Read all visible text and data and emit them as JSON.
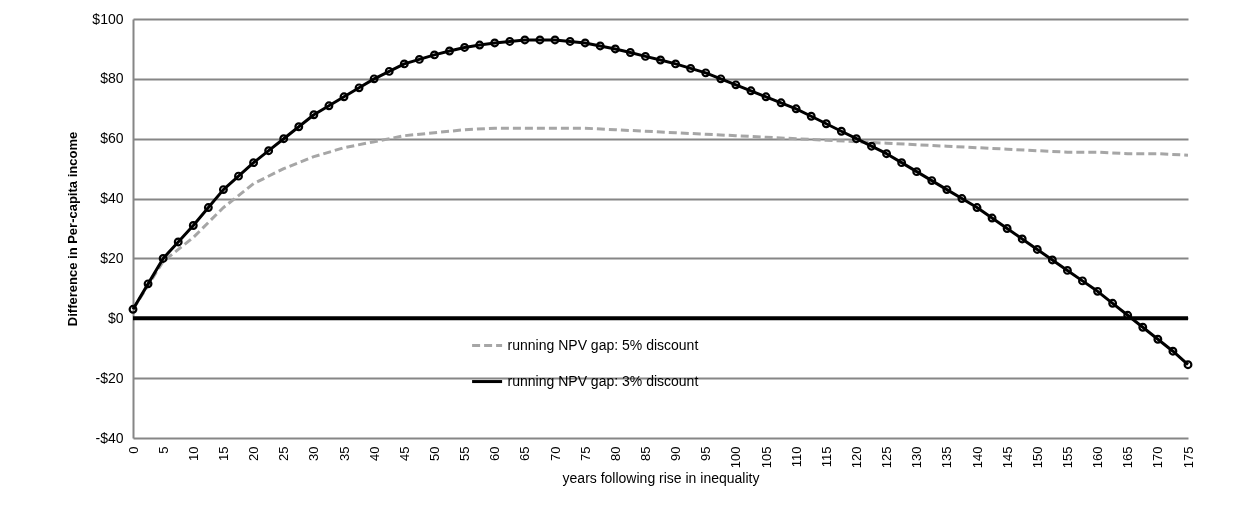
{
  "chart_data": {
    "type": "line",
    "xlabel": "years following rise in inequality",
    "ylabel": "Difference in Per-capita income",
    "xlim": [
      0,
      175
    ],
    "xticks": [
      0,
      5,
      10,
      15,
      20,
      25,
      30,
      35,
      40,
      45,
      50,
      55,
      60,
      65,
      70,
      75,
      80,
      85,
      90,
      95,
      100,
      105,
      110,
      115,
      120,
      125,
      130,
      135,
      140,
      145,
      150,
      155,
      160,
      165,
      170,
      175
    ],
    "ylim": [
      -40,
      100
    ],
    "yticks": [
      {
        "value": -40,
        "label": "-$40"
      },
      {
        "value": -20,
        "label": "-$20"
      },
      {
        "value": 0,
        "label": "$0"
      },
      {
        "value": 20,
        "label": "$20"
      },
      {
        "value": 40,
        "label": "$40"
      },
      {
        "value": 60,
        "label": "$60"
      },
      {
        "value": 80,
        "label": "$80"
      },
      {
        "value": 100,
        "label": "$100"
      }
    ],
    "grid": "y",
    "legend": "bottom",
    "ref_lines": [
      {
        "axis": "y",
        "value": 0,
        "color": "#000000"
      }
    ],
    "series": [
      {
        "name": "running NPV gap: 5% discount",
        "color": "#a6a6a6",
        "line_style": "dashed",
        "marker": "none",
        "x": [
          0,
          5,
          10,
          15,
          20,
          25,
          30,
          35,
          40,
          45,
          50,
          55,
          60,
          65,
          70,
          75,
          80,
          85,
          90,
          95,
          100,
          105,
          110,
          115,
          120,
          125,
          130,
          135,
          140,
          145,
          150,
          155,
          160,
          165,
          170,
          175
        ],
        "values": [
          3,
          19,
          27,
          37,
          45,
          50,
          54,
          57,
          59,
          61,
          62,
          63,
          63.5,
          63.5,
          63.5,
          63.5,
          63,
          62.5,
          62,
          61.5,
          61,
          60.5,
          60,
          59.5,
          59,
          58.5,
          58,
          57.5,
          57,
          56.5,
          56,
          55.5,
          55.5,
          55,
          55,
          54.5
        ]
      },
      {
        "name": "running NPV gap: 3% discount",
        "color": "#000000",
        "line_style": "solid",
        "marker": "circle",
        "x": [
          0,
          2.5,
          5,
          7.5,
          10,
          12.5,
          15,
          17.5,
          20,
          22.5,
          25,
          27.5,
          30,
          32.5,
          35,
          37.5,
          40,
          42.5,
          45,
          47.5,
          50,
          52.5,
          55,
          57.5,
          60,
          62.5,
          65,
          67.5,
          70,
          72.5,
          75,
          77.5,
          80,
          82.5,
          85,
          87.5,
          90,
          92.5,
          95,
          97.5,
          100,
          102.5,
          105,
          107.5,
          110,
          112.5,
          115,
          117.5,
          120,
          122.5,
          125,
          127.5,
          130,
          132.5,
          135,
          137.5,
          140,
          142.5,
          145,
          147.5,
          150,
          152.5,
          155,
          157.5,
          160,
          162.5,
          165,
          167.5,
          170,
          172.5,
          175
        ],
        "values": [
          3,
          11.5,
          20,
          25.5,
          31,
          37,
          43,
          47.5,
          52,
          56,
          60,
          64,
          68,
          71,
          74,
          77,
          80,
          82.5,
          85,
          86.5,
          88,
          89.3,
          90.5,
          91.3,
          92,
          92.5,
          93,
          93,
          93,
          92.5,
          92,
          91,
          90,
          88.8,
          87.5,
          86.3,
          85,
          83.5,
          82,
          80,
          78,
          76,
          74,
          72,
          70,
          67.5,
          65,
          62.5,
          60,
          57.5,
          55,
          52,
          49,
          46,
          43,
          40,
          37,
          33.5,
          30,
          26.5,
          23,
          19.5,
          16,
          12.5,
          9,
          5,
          1,
          -3,
          -7,
          -11,
          -15.5
        ]
      }
    ]
  }
}
